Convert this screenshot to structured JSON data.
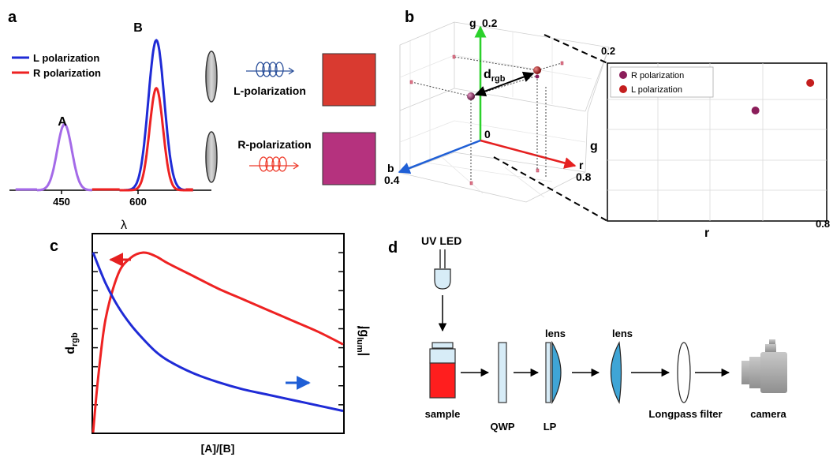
{
  "panels": {
    "a": {
      "letter": "a",
      "legend": [
        "L polarization",
        "R polarization"
      ],
      "peak_labels": [
        "A",
        "B"
      ],
      "x_ticks": [
        "450",
        "600"
      ],
      "x_axis_label": "λ",
      "beams": [
        "L-polarization",
        "R-polarization"
      ],
      "swatch_colors": [
        "#d93a30",
        "#b5327e"
      ]
    },
    "b": {
      "letter": "b",
      "axis_g": "g",
      "axis_g_max": "0.2",
      "origin": "0",
      "axis_r": "r",
      "axis_r_max": "0.8",
      "axis_b": "b",
      "axis_b_max": "0.4",
      "distance_label": "d",
      "distance_sub": "rgb",
      "inset": {
        "legend": [
          "R polarization",
          "L polarization"
        ],
        "y_label": "g",
        "y_max": "0.2",
        "x_label": "r",
        "x_max": "0.8",
        "points": [
          {
            "name": "R polarization",
            "r": 0.54,
            "g": 0.14,
            "color": "#8b1d5a"
          },
          {
            "name": "L polarization",
            "r": 0.74,
            "g": 0.175,
            "color": "#c41e1e"
          }
        ]
      }
    },
    "c": {
      "letter": "c",
      "y_left_main": "d",
      "y_left_sub": "rgb",
      "y_right_main": "g",
      "y_right_sub": "lum",
      "x_label": "[A]/[B]"
    },
    "d": {
      "letter": "d",
      "source": "UV LED",
      "components": [
        "sample",
        "QWP",
        "LP",
        "lens",
        "lens",
        "Longpass filter",
        "camera"
      ]
    }
  },
  "chart_data": [
    {
      "type": "line",
      "panel": "a",
      "xlabel": "λ",
      "ylabel": "",
      "x_ticks": [
        450,
        600
      ],
      "xlim": [
        360,
        690
      ],
      "series": [
        {
          "name": "L polarization",
          "color": "#1f2bd6",
          "peaks": [
            {
              "center": 450,
              "height": 0.44,
              "width": 12,
              "color": "#a46ae8"
            },
            {
              "center": 600,
              "height": 1.0,
              "width": 13
            }
          ]
        },
        {
          "name": "R polarization",
          "color": "#ee2222",
          "peaks": [
            {
              "center": 450,
              "height": 0.44,
              "width": 12,
              "color": "#a46ae8"
            },
            {
              "center": 600,
              "height": 0.68,
              "width": 11
            }
          ]
        }
      ],
      "annotations": [
        "A",
        "B"
      ]
    },
    {
      "type": "line",
      "panel": "c",
      "xlabel": "[A]/[B]",
      "ylabel": "d_rgb",
      "ylabel_right": "|g̃_lum|",
      "xlim": [
        0,
        1
      ],
      "ylim": [
        0,
        1
      ],
      "series": [
        {
          "name": "d_rgb",
          "axis": "left",
          "color": "#ee2222",
          "x": [
            0,
            0.02,
            0.05,
            0.1,
            0.15,
            0.2,
            0.25,
            0.3,
            0.4,
            0.5,
            0.6,
            0.7,
            0.8,
            0.9,
            1.0
          ],
          "y": [
            0.0,
            0.3,
            0.63,
            0.88,
            0.97,
            1.0,
            0.98,
            0.94,
            0.87,
            0.8,
            0.74,
            0.68,
            0.62,
            0.56,
            0.49
          ]
        },
        {
          "name": "|g̃_lum|",
          "axis": "right",
          "color": "#1f2bd6",
          "x": [
            0,
            0.05,
            0.1,
            0.15,
            0.2,
            0.25,
            0.3,
            0.4,
            0.5,
            0.6,
            0.7,
            0.8,
            0.9,
            1.0
          ],
          "y": [
            1.0,
            0.83,
            0.7,
            0.6,
            0.52,
            0.45,
            0.4,
            0.33,
            0.28,
            0.24,
            0.21,
            0.18,
            0.15,
            0.12
          ]
        }
      ]
    }
  ]
}
